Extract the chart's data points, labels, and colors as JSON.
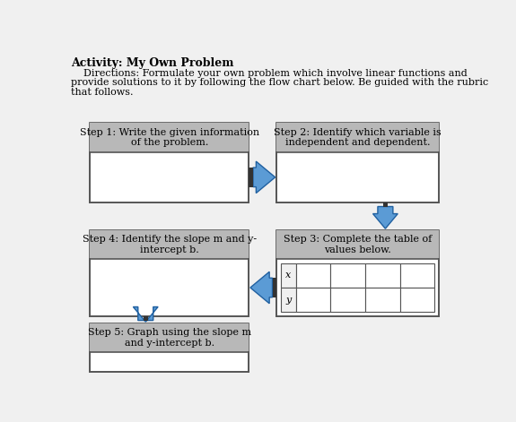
{
  "title": "Activity: My Own Problem",
  "dir_line1": "    Directions: Formulate your own problem which involve linear functions and",
  "dir_line2": "provide solutions to it by following the flow chart below. Be guided with the rubric",
  "dir_line3": "that follows.",
  "bg_color": "#f0f0f0",
  "box_fill": "#ffffff",
  "header_fill": "#b8b8b8",
  "border_color": "#555555",
  "arrow_fill": "#5b9bd5",
  "arrow_edge": "#2060a0",
  "step1_label": "Step 1: Write the given information\nof the problem.",
  "step2_label": "Step 2: Identify which variable is\nindependent and dependent.",
  "step3_label": "Step 3: Complete the table of\nvalues below.",
  "step4_label": "Step 4: Identify the slope m and y-\nintercept b.",
  "step5_label": "Step 5: Graph using the slope m\nand y-intercept b.",
  "step4_label_parts": [
    "Step 4: Identify the slope ",
    "m",
    " and ",
    "y",
    "-\nintercept ",
    "b",
    "."
  ],
  "step5_label_parts": [
    "Step 5: Graph using the slope ",
    "m",
    "\nand ",
    "y",
    "-intercept ",
    "b",
    "."
  ],
  "table_row_labels": [
    "x",
    "y"
  ],
  "table_cols": 4,
  "font_size_title": 9,
  "font_size_dir": 8,
  "font_size_step": 8
}
